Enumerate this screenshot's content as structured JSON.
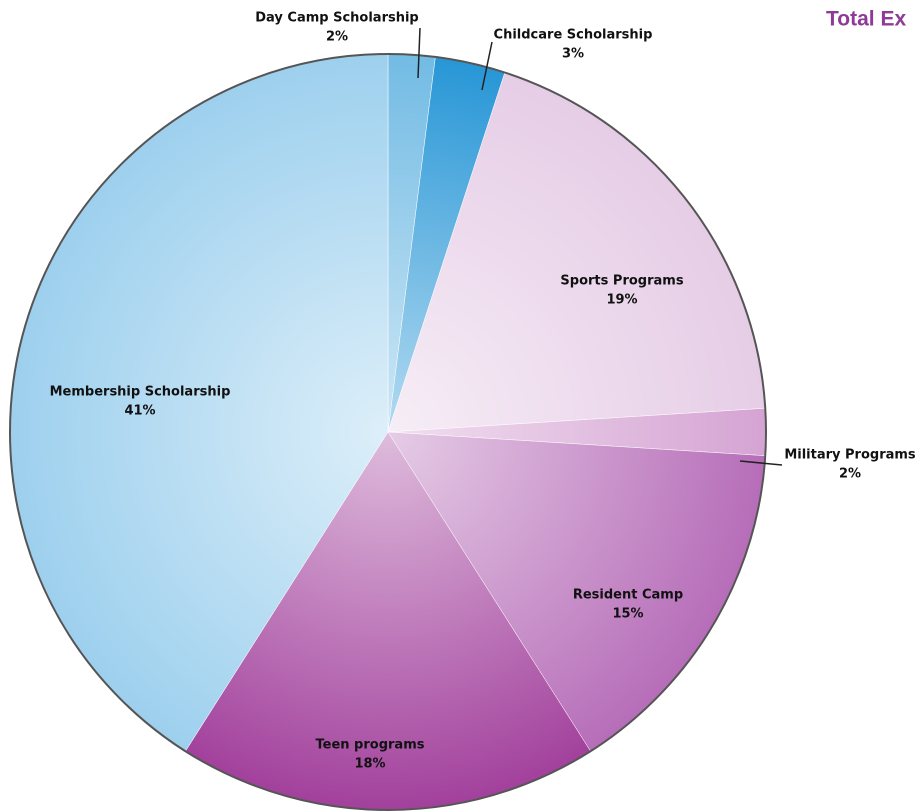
{
  "chart_data": {
    "type": "pie",
    "title": "Total Ex",
    "categories": [
      "Day Camp Scholarship",
      "Childcare Scholarship",
      "Sports Programs",
      "Military Programs",
      "Resident Camp",
      "Teen programs",
      "Membership Scholarship"
    ],
    "values": [
      2,
      3,
      19,
      2,
      15,
      18,
      41
    ],
    "value_labels": [
      "2%",
      "3%",
      "19%",
      "2%",
      "15%",
      "18%",
      "41%"
    ],
    "colors": [
      "#72bbe4",
      "#2796d6",
      "#e6cde6",
      "#d5a3d3",
      "#b66db8",
      "#a2409c",
      "#9dd0ee"
    ]
  }
}
